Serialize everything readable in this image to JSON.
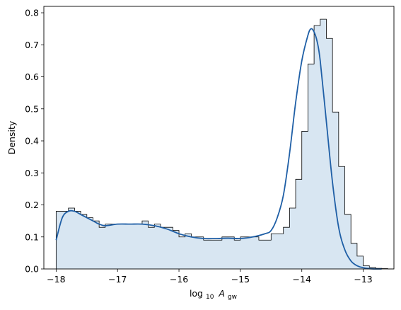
{
  "chart_data": {
    "type": "bar",
    "subtype": "step-histogram-with-kde",
    "title": "",
    "xlabel_base": "log",
    "xlabel_sub": "10",
    "xlabel_var": "A",
    "xlabel_var_sub": "gw",
    "ylabel": "Density",
    "xlim": [
      -18.2,
      -12.5
    ],
    "ylim": [
      0,
      0.82
    ],
    "x_ticks": [
      -18,
      -17,
      -16,
      -15,
      -14,
      -13
    ],
    "x_tick_labels": [
      "−18",
      "−17",
      "−16",
      "−15",
      "−14",
      "−13"
    ],
    "y_ticks": [
      0.0,
      0.1,
      0.2,
      0.3,
      0.4,
      0.5,
      0.6,
      0.7,
      0.8
    ],
    "y_tick_labels": [
      "0.0",
      "0.1",
      "0.2",
      "0.3",
      "0.4",
      "0.5",
      "0.6",
      "0.7",
      "0.8"
    ],
    "grid": false,
    "legend": "none",
    "colors": {
      "fill": "#d8e6f2",
      "edge": "#000000",
      "kde": "#1f5fa6"
    },
    "histogram": {
      "bin_start": -18.0,
      "bin_width": 0.1,
      "values": [
        0.18,
        0.18,
        0.19,
        0.18,
        0.17,
        0.16,
        0.15,
        0.13,
        0.14,
        0.14,
        0.14,
        0.14,
        0.14,
        0.14,
        0.15,
        0.13,
        0.14,
        0.13,
        0.13,
        0.12,
        0.1,
        0.11,
        0.1,
        0.1,
        0.09,
        0.09,
        0.09,
        0.1,
        0.1,
        0.09,
        0.1,
        0.1,
        0.1,
        0.09,
        0.09,
        0.11,
        0.11,
        0.13,
        0.19,
        0.28,
        0.43,
        0.64,
        0.76,
        0.78,
        0.72,
        0.49,
        0.32,
        0.17,
        0.08,
        0.04,
        0.01,
        0.005,
        0.002,
        0.001,
        0.0
      ]
    },
    "kde": {
      "x": [
        -18.0,
        -17.9,
        -17.8,
        -17.7,
        -17.6,
        -17.5,
        -17.4,
        -17.3,
        -17.2,
        -17.0,
        -16.8,
        -16.6,
        -16.4,
        -16.2,
        -16.0,
        -15.8,
        -15.6,
        -15.4,
        -15.2,
        -15.0,
        -14.8,
        -14.6,
        -14.5,
        -14.4,
        -14.3,
        -14.2,
        -14.1,
        -14.0,
        -13.9,
        -13.85,
        -13.8,
        -13.75,
        -13.7,
        -13.6,
        -13.5,
        -13.4,
        -13.3,
        -13.2,
        -13.1,
        -13.0,
        -12.9,
        -12.8,
        -12.7
      ],
      "y": [
        0.09,
        0.16,
        0.18,
        0.18,
        0.17,
        0.16,
        0.15,
        0.14,
        0.135,
        0.14,
        0.14,
        0.14,
        0.135,
        0.125,
        0.11,
        0.1,
        0.095,
        0.095,
        0.096,
        0.095,
        0.1,
        0.11,
        0.12,
        0.16,
        0.23,
        0.36,
        0.52,
        0.65,
        0.73,
        0.75,
        0.74,
        0.71,
        0.65,
        0.46,
        0.27,
        0.13,
        0.06,
        0.025,
        0.01,
        0.004,
        0.001,
        0.0,
        0.0
      ]
    }
  }
}
